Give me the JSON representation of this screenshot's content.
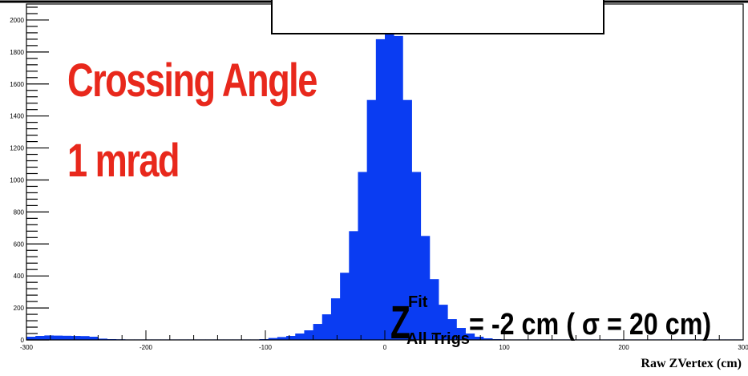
{
  "chart_data": {
    "type": "bar",
    "title": "",
    "xlabel": "Raw ZVertex (cm)",
    "ylabel": "",
    "xlim": [
      -300,
      300
    ],
    "ylim": [
      0,
      2100
    ],
    "x_ticks": [
      "-300",
      "-200",
      "-100",
      "0",
      "100",
      "200",
      "300"
    ],
    "y_ticks": [
      "0",
      "200",
      "400",
      "600",
      "800",
      "1000",
      "1200",
      "1400",
      "1600",
      "1800",
      "2000"
    ],
    "bin_width": 7.5,
    "bin_centers": [
      -296.25,
      -288.75,
      -281.25,
      -273.75,
      -266.25,
      -258.75,
      -251.25,
      -243.75,
      -236.25,
      -228.75,
      -221.25,
      -213.75,
      -206.25,
      -198.75,
      -191.25,
      -183.75,
      -176.25,
      -168.75,
      -161.25,
      -153.75,
      -146.25,
      -138.75,
      -131.25,
      -123.75,
      -116.25,
      -108.75,
      -101.25,
      -93.75,
      -86.25,
      -78.75,
      -71.25,
      -63.75,
      -56.25,
      -48.75,
      -41.25,
      -33.75,
      -26.25,
      -18.75,
      -11.25,
      -3.75,
      3.75,
      11.25,
      18.75,
      26.25,
      33.75,
      41.25,
      48.75,
      56.25,
      63.75,
      71.25,
      78.75,
      86.25,
      93.75,
      101.25,
      108.75,
      116.25,
      123.75,
      131.25,
      138.75,
      146.25,
      153.75,
      161.25,
      168.75,
      176.25,
      183.75,
      191.25,
      198.75,
      206.25,
      213.75,
      221.25,
      228.75,
      236.25,
      243.75,
      251.25,
      258.75,
      266.25,
      273.75,
      281.25,
      288.75,
      296.25
    ],
    "values": [
      20,
      25,
      28,
      27,
      26,
      25,
      24,
      20,
      8,
      5,
      4,
      3,
      3,
      3,
      3,
      3,
      3,
      3,
      3,
      3,
      3,
      3,
      3,
      3,
      3,
      3,
      5,
      12,
      18,
      25,
      40,
      60,
      100,
      160,
      260,
      420,
      680,
      1050,
      1500,
      1880,
      2050,
      1900,
      1500,
      1050,
      650,
      380,
      220,
      130,
      75,
      40,
      20,
      10,
      5,
      3,
      3,
      3,
      3,
      3,
      3,
      3,
      3,
      3,
      3,
      3,
      3,
      3,
      3,
      3,
      3,
      3,
      3,
      3,
      3,
      3,
      3,
      3,
      3,
      3,
      3,
      3
    ],
    "bar_color": "#0a3cf2",
    "grid": false,
    "annotations": {
      "crossing_line1": "Crossing Angle",
      "crossing_line2": "1 mrad",
      "zfit_base": "Z",
      "zfit_sup": "Fit",
      "zfit_sub": "All Trigs",
      "zfit_expr": "= -2 cm ( σ = 20 cm)"
    },
    "annotation_color": "#e8281c"
  }
}
